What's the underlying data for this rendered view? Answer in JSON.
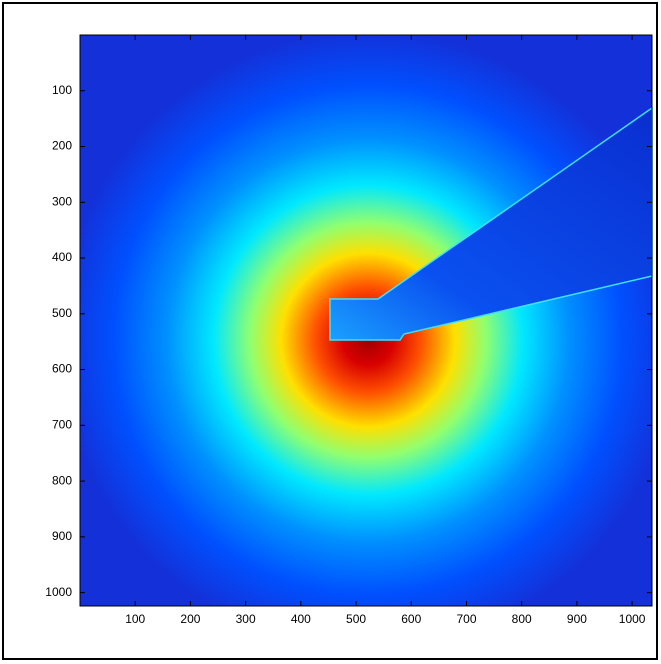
{
  "chart_data": {
    "type": "image",
    "xlim": [
      0,
      1036
    ],
    "ylim": [
      1024,
      0
    ],
    "xticks": [
      100,
      200,
      300,
      400,
      500,
      600,
      700,
      800,
      900,
      1000
    ],
    "yticks": [
      100,
      200,
      300,
      400,
      500,
      600,
      700,
      800,
      900,
      1000
    ],
    "colormap": "jet"
  }
}
